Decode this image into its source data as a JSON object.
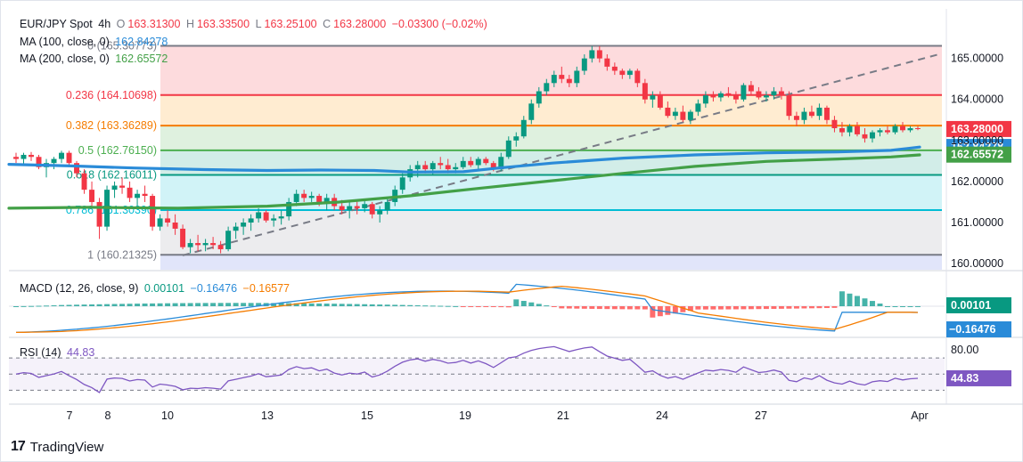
{
  "header": {
    "symbol": "EUR/JPY Spot",
    "interval": "4h",
    "o_label": "O",
    "o_value": "163.31300",
    "h_label": "H",
    "h_value": "163.33500",
    "l_label": "L",
    "l_value": "163.25100",
    "c_label": "C",
    "c_value": "163.28000",
    "change": "−0.03300 (−0.02%)"
  },
  "indicators": {
    "ma100": {
      "label": "MA (100, close, 0)",
      "value": "162.84278",
      "color": "#2a8bd8"
    },
    "ma200": {
      "label": "MA (200, close, 0)",
      "value": "162.65572",
      "color": "#43a047"
    },
    "macd": {
      "label": "MACD (12, 26, close, 9)",
      "hist": "0.00101",
      "macd": "−0.16476",
      "signal": "−0.16577"
    },
    "rsi": {
      "label": "RSI (14)",
      "value": "44.83"
    }
  },
  "colors": {
    "up": "#089981",
    "down": "#f23645",
    "ma100": "#2a8bd8",
    "ma200": "#43a047",
    "macd_line": "#2a8bd8",
    "signal_line": "#f57c00",
    "rsi_line": "#7e57c2",
    "price_badge": "#f23645"
  },
  "brand": {
    "logo": "17",
    "name": "TradingView"
  },
  "chart_data": {
    "type": "candlestick",
    "y_axis": {
      "ticks": [
        "165.00000",
        "164.00000",
        "163.00000",
        "162.00000",
        "161.00000",
        "160.00000"
      ],
      "ylim": [
        159.85,
        165.6
      ]
    },
    "x_axis": {
      "ticks": [
        "7",
        "8",
        "10",
        "13",
        "15",
        "19",
        "21",
        "24",
        "27",
        "Apr"
      ]
    },
    "fib_levels": [
      {
        "ratio": "0",
        "price": 165.30773,
        "label": "0 (165.30773)",
        "color": "#787b86"
      },
      {
        "ratio": "0.236",
        "price": 164.10698,
        "label": "0.236 (164.10698)",
        "color": "#f23645"
      },
      {
        "ratio": "0.382",
        "price": 163.36289,
        "label": "0.382 (163.36289)",
        "color": "#f57c00"
      },
      {
        "ratio": "0.5",
        "price": 162.7615,
        "label": "0.5 (162.76150)",
        "color": "#4caf50"
      },
      {
        "ratio": "0.618",
        "price": 162.16011,
        "label": "0.618 (162.16011)",
        "color": "#089981"
      },
      {
        "ratio": "0.786",
        "price": 161.3039,
        "label": "0.786 (161.30390)",
        "color": "#00bcd4"
      },
      {
        "ratio": "1",
        "price": 160.21325,
        "label": "1 (160.21325)",
        "color": "#787b86"
      }
    ],
    "price_badges": [
      {
        "value": "163.28000",
        "price": 163.28,
        "color": "#f23645"
      },
      {
        "value": "162.84278",
        "price": 162.84278,
        "color": "#2a8bd8"
      },
      {
        "value": "162.65572",
        "price": 162.65572,
        "color": "#43a047"
      }
    ],
    "candles": [
      [
        162.6,
        162.7,
        162.45,
        162.55
      ],
      [
        162.55,
        162.7,
        162.4,
        162.65
      ],
      [
        162.65,
        162.72,
        162.5,
        162.6
      ],
      [
        162.6,
        162.65,
        162.3,
        162.35
      ],
      [
        162.35,
        162.55,
        162.1,
        162.45
      ],
      [
        162.45,
        162.6,
        162.3,
        162.55
      ],
      [
        162.55,
        162.75,
        162.45,
        162.7
      ],
      [
        162.7,
        162.75,
        162.4,
        162.45
      ],
      [
        162.45,
        162.5,
        162.1,
        162.2
      ],
      [
        162.2,
        162.3,
        161.7,
        161.8
      ],
      [
        161.8,
        162.0,
        161.4,
        161.5
      ],
      [
        161.5,
        161.6,
        160.6,
        160.9
      ],
      [
        160.9,
        161.9,
        160.8,
        161.8
      ],
      [
        161.8,
        162.0,
        161.6,
        161.9
      ],
      [
        161.9,
        162.1,
        161.7,
        161.85
      ],
      [
        161.85,
        162.0,
        161.5,
        161.6
      ],
      [
        161.6,
        161.8,
        161.4,
        161.7
      ],
      [
        161.7,
        161.9,
        161.5,
        161.65
      ],
      [
        161.65,
        161.7,
        160.8,
        160.9
      ],
      [
        160.9,
        161.2,
        160.8,
        161.1
      ],
      [
        161.1,
        161.3,
        160.9,
        161.0
      ],
      [
        161.0,
        161.2,
        160.7,
        160.85
      ],
      [
        160.85,
        160.95,
        160.35,
        160.4
      ],
      [
        160.4,
        160.6,
        160.25,
        160.5
      ],
      [
        160.5,
        160.7,
        160.3,
        160.45
      ],
      [
        160.45,
        160.6,
        160.3,
        160.5
      ],
      [
        160.5,
        160.65,
        160.35,
        160.45
      ],
      [
        160.45,
        160.55,
        160.25,
        160.35
      ],
      [
        160.35,
        160.9,
        160.3,
        160.8
      ],
      [
        160.8,
        161.0,
        160.6,
        160.9
      ],
      [
        160.9,
        161.1,
        160.7,
        161.0
      ],
      [
        161.0,
        161.2,
        160.8,
        161.1
      ],
      [
        161.1,
        161.35,
        161.0,
        161.25
      ],
      [
        161.25,
        161.3,
        161.0,
        161.05
      ],
      [
        161.05,
        161.2,
        160.9,
        161.1
      ],
      [
        161.1,
        161.3,
        160.95,
        161.15
      ],
      [
        161.15,
        161.6,
        161.05,
        161.5
      ],
      [
        161.5,
        161.8,
        161.4,
        161.7
      ],
      [
        161.7,
        161.8,
        161.5,
        161.6
      ],
      [
        161.6,
        161.75,
        161.5,
        161.65
      ],
      [
        161.65,
        161.7,
        161.4,
        161.5
      ],
      [
        161.5,
        161.7,
        161.3,
        161.6
      ],
      [
        161.6,
        161.7,
        161.3,
        161.4
      ],
      [
        161.4,
        161.55,
        161.2,
        161.3
      ],
      [
        161.3,
        161.5,
        161.1,
        161.4
      ],
      [
        161.4,
        161.55,
        161.2,
        161.35
      ],
      [
        161.35,
        161.55,
        161.25,
        161.45
      ],
      [
        161.45,
        161.5,
        161.1,
        161.2
      ],
      [
        161.2,
        161.4,
        161.0,
        161.3
      ],
      [
        161.3,
        161.6,
        161.2,
        161.5
      ],
      [
        161.5,
        161.9,
        161.4,
        161.8
      ],
      [
        161.8,
        162.2,
        161.7,
        162.1
      ],
      [
        162.1,
        162.4,
        162.0,
        162.3
      ],
      [
        162.3,
        162.5,
        162.1,
        162.4
      ],
      [
        162.4,
        162.5,
        162.2,
        162.3
      ],
      [
        162.3,
        162.5,
        162.15,
        162.45
      ],
      [
        162.45,
        162.6,
        162.3,
        162.4
      ],
      [
        162.4,
        162.55,
        162.2,
        162.3
      ],
      [
        162.3,
        162.45,
        162.2,
        162.35
      ],
      [
        162.35,
        162.6,
        162.3,
        162.5
      ],
      [
        162.5,
        162.6,
        162.35,
        162.4
      ],
      [
        162.4,
        162.6,
        162.3,
        162.55
      ],
      [
        162.55,
        162.6,
        162.4,
        162.45
      ],
      [
        162.45,
        162.5,
        162.25,
        162.3
      ],
      [
        162.3,
        162.7,
        162.25,
        162.6
      ],
      [
        162.6,
        163.1,
        162.55,
        163.0
      ],
      [
        163.0,
        163.2,
        162.85,
        163.1
      ],
      [
        163.1,
        163.6,
        163.05,
        163.5
      ],
      [
        163.5,
        164.0,
        163.4,
        163.9
      ],
      [
        163.9,
        164.3,
        163.8,
        164.2
      ],
      [
        164.2,
        164.5,
        164.1,
        164.4
      ],
      [
        164.4,
        164.7,
        164.3,
        164.6
      ],
      [
        164.6,
        164.8,
        164.4,
        164.5
      ],
      [
        164.5,
        164.6,
        164.3,
        164.4
      ],
      [
        164.4,
        164.8,
        164.3,
        164.7
      ],
      [
        164.7,
        165.1,
        164.6,
        165.0
      ],
      [
        165.0,
        165.3,
        164.9,
        165.2
      ],
      [
        165.2,
        165.3,
        164.9,
        165.0
      ],
      [
        165.0,
        165.1,
        164.7,
        164.8
      ],
      [
        164.8,
        164.9,
        164.6,
        164.7
      ],
      [
        164.7,
        164.75,
        164.5,
        164.6
      ],
      [
        164.6,
        164.75,
        164.5,
        164.7
      ],
      [
        164.7,
        164.75,
        164.3,
        164.4
      ],
      [
        164.4,
        164.5,
        163.9,
        164.0
      ],
      [
        164.0,
        164.2,
        163.8,
        164.1
      ],
      [
        164.1,
        164.2,
        163.75,
        163.8
      ],
      [
        163.8,
        163.95,
        163.55,
        163.6
      ],
      [
        163.6,
        163.8,
        163.5,
        163.7
      ],
      [
        163.7,
        163.85,
        163.45,
        163.5
      ],
      [
        163.5,
        163.75,
        163.4,
        163.7
      ],
      [
        163.7,
        164.0,
        163.6,
        163.9
      ],
      [
        163.9,
        164.2,
        163.8,
        164.1
      ],
      [
        164.1,
        164.2,
        163.95,
        164.05
      ],
      [
        164.05,
        164.2,
        163.95,
        164.15
      ],
      [
        164.15,
        164.3,
        164.05,
        164.1
      ],
      [
        164.1,
        164.2,
        163.9,
        164.0
      ],
      [
        164.0,
        164.4,
        163.95,
        164.35
      ],
      [
        164.35,
        164.45,
        164.1,
        164.2
      ],
      [
        164.2,
        164.3,
        164.0,
        164.05
      ],
      [
        164.05,
        164.2,
        163.95,
        164.1
      ],
      [
        164.1,
        164.3,
        164.0,
        164.2
      ],
      [
        164.2,
        164.3,
        164.0,
        164.1
      ],
      [
        164.1,
        164.2,
        163.5,
        163.6
      ],
      [
        163.6,
        163.7,
        163.35,
        163.5
      ],
      [
        163.5,
        163.8,
        163.4,
        163.7
      ],
      [
        163.7,
        163.85,
        163.55,
        163.6
      ],
      [
        163.6,
        163.9,
        163.5,
        163.8
      ],
      [
        163.8,
        163.85,
        163.4,
        163.5
      ],
      [
        163.5,
        163.6,
        163.2,
        163.3
      ],
      [
        163.3,
        163.45,
        163.1,
        163.2
      ],
      [
        163.2,
        163.4,
        163.1,
        163.35
      ],
      [
        163.35,
        163.45,
        163.1,
        163.15
      ],
      [
        163.15,
        163.3,
        162.95,
        163.05
      ],
      [
        163.05,
        163.25,
        162.95,
        163.2
      ],
      [
        163.2,
        163.3,
        163.1,
        163.25
      ],
      [
        163.25,
        163.35,
        163.15,
        163.2
      ],
      [
        163.2,
        163.4,
        163.15,
        163.35
      ],
      [
        163.35,
        163.45,
        163.2,
        163.25
      ],
      [
        163.25,
        163.35,
        163.2,
        163.3
      ],
      [
        163.3,
        163.35,
        163.25,
        163.28
      ]
    ],
    "macd": {
      "hist_last": 0.00101,
      "macd_last": -0.16476,
      "signal_last": -0.16577
    },
    "rsi": {
      "levels": [
        70,
        50,
        30
      ],
      "last": 44.83,
      "tick": "80.00"
    }
  }
}
